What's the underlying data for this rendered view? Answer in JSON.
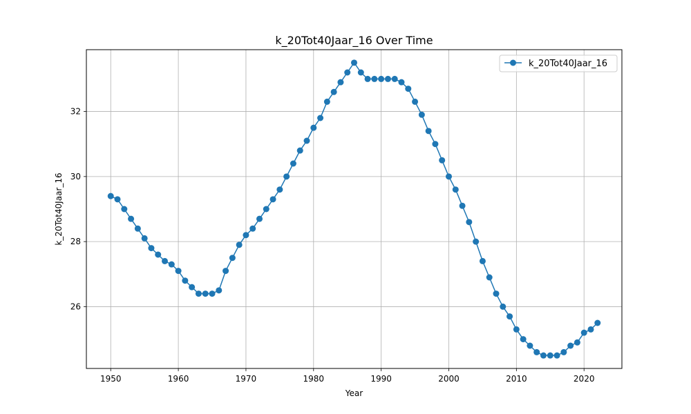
{
  "chart_data": {
    "type": "line",
    "title": "k_20Tot40Jaar_16 Over Time",
    "xlabel": "Year",
    "ylabel": "k_20Tot40Jaar_16",
    "xlim": [
      1946.4,
      2025.6
    ],
    "ylim": [
      24.1,
      33.9
    ],
    "xticks": [
      1950,
      1960,
      1970,
      1980,
      1990,
      2000,
      2010,
      2020
    ],
    "yticks": [
      26,
      28,
      30,
      32
    ],
    "grid": true,
    "legend_position": "top-right",
    "series": [
      {
        "name": "k_20Tot40Jaar_16",
        "color": "#1f77b4",
        "marker": "circle",
        "x": [
          1950,
          1951,
          1952,
          1953,
          1954,
          1955,
          1956,
          1957,
          1958,
          1959,
          1960,
          1961,
          1962,
          1963,
          1964,
          1965,
          1966,
          1967,
          1968,
          1969,
          1970,
          1971,
          1972,
          1973,
          1974,
          1975,
          1976,
          1977,
          1978,
          1979,
          1980,
          1981,
          1982,
          1983,
          1984,
          1985,
          1986,
          1987,
          1988,
          1989,
          1990,
          1991,
          1992,
          1993,
          1994,
          1995,
          1996,
          1997,
          1998,
          1999,
          2000,
          2001,
          2002,
          2003,
          2004,
          2005,
          2006,
          2007,
          2008,
          2009,
          2010,
          2011,
          2012,
          2013,
          2014,
          2015,
          2016,
          2017,
          2018,
          2019,
          2020,
          2021,
          2022
        ],
        "values": [
          29.4,
          29.3,
          29.0,
          28.7,
          28.4,
          28.1,
          27.8,
          27.6,
          27.4,
          27.3,
          27.1,
          26.8,
          26.6,
          26.4,
          26.4,
          26.4,
          26.5,
          27.1,
          27.5,
          27.9,
          28.2,
          28.4,
          28.7,
          29.0,
          29.3,
          29.6,
          30.0,
          30.4,
          30.8,
          31.1,
          31.5,
          31.8,
          32.3,
          32.6,
          32.9,
          33.2,
          33.5,
          33.2,
          33.0,
          33.0,
          33.0,
          33.0,
          33.0,
          32.9,
          32.7,
          32.3,
          31.9,
          31.4,
          31.0,
          30.5,
          30.0,
          29.6,
          29.1,
          28.6,
          28.0,
          27.4,
          26.9,
          26.4,
          26.0,
          25.7,
          25.3,
          25.0,
          24.8,
          24.6,
          24.5,
          24.5,
          24.5,
          24.6,
          24.8,
          24.9,
          25.2,
          25.3,
          25.5
        ]
      }
    ]
  }
}
